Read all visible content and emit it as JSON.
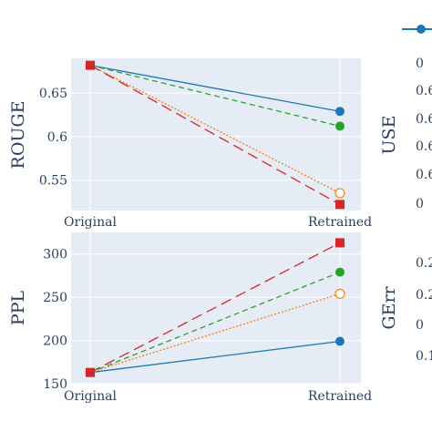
{
  "chart_data": [
    {
      "type": "line",
      "ylabel": "ROUGE",
      "categories": [
        "Original",
        "Retrained"
      ],
      "ylim": [
        0.515,
        0.69
      ],
      "yticks": [
        0.55,
        0.6,
        0.65
      ],
      "ytick_labels": [
        "0.55",
        "0.6",
        "0.65"
      ],
      "grid": true,
      "series": [
        {
          "values": [
            0.682,
            0.629
          ],
          "color": "#1f77b4",
          "marker": "circle",
          "dash": "solid"
        },
        {
          "values": [
            0.682,
            0.612
          ],
          "color": "#2ca02c",
          "marker": "circle",
          "dash": "dash"
        },
        {
          "values": [
            0.682,
            0.535
          ],
          "color": "#ff7f0e",
          "marker": "circle-open",
          "dash": "dot"
        },
        {
          "values": [
            0.682,
            0.522
          ],
          "color": "#d62728",
          "marker": "square",
          "dash": "longdash"
        }
      ]
    },
    {
      "type": "line",
      "ylabel": "PPL",
      "categories": [
        "Original",
        "Retrained"
      ],
      "ylim": [
        150,
        325
      ],
      "yticks": [
        150,
        200,
        250,
        300
      ],
      "ytick_labels": [
        "150",
        "200",
        "250",
        "300"
      ],
      "grid": true,
      "series": [
        {
          "values": [
            163,
            199
          ],
          "color": "#1f77b4",
          "marker": "circle",
          "dash": "solid"
        },
        {
          "values": [
            163,
            279
          ],
          "color": "#2ca02c",
          "marker": "circle",
          "dash": "dash"
        },
        {
          "values": [
            163,
            254
          ],
          "color": "#ff7f0e",
          "marker": "circle-open",
          "dash": "dot"
        },
        {
          "values": [
            163,
            313
          ],
          "color": "#d62728",
          "marker": "square",
          "dash": "longdash"
        }
      ]
    }
  ],
  "right_panels": {
    "top_title": "USE",
    "top_tick_labels": [
      "0",
      "0.6",
      "0.6",
      "0.6",
      "0.6",
      "0"
    ],
    "bottom_title": "GErr",
    "bottom_tick_labels": [
      "0.2",
      "0.2",
      "0",
      "0.1"
    ]
  },
  "colors": {
    "background": "#ffffff",
    "plot_bg": "#e5ecf6",
    "grid": "#ffffff",
    "text": "#2a3f5f"
  }
}
